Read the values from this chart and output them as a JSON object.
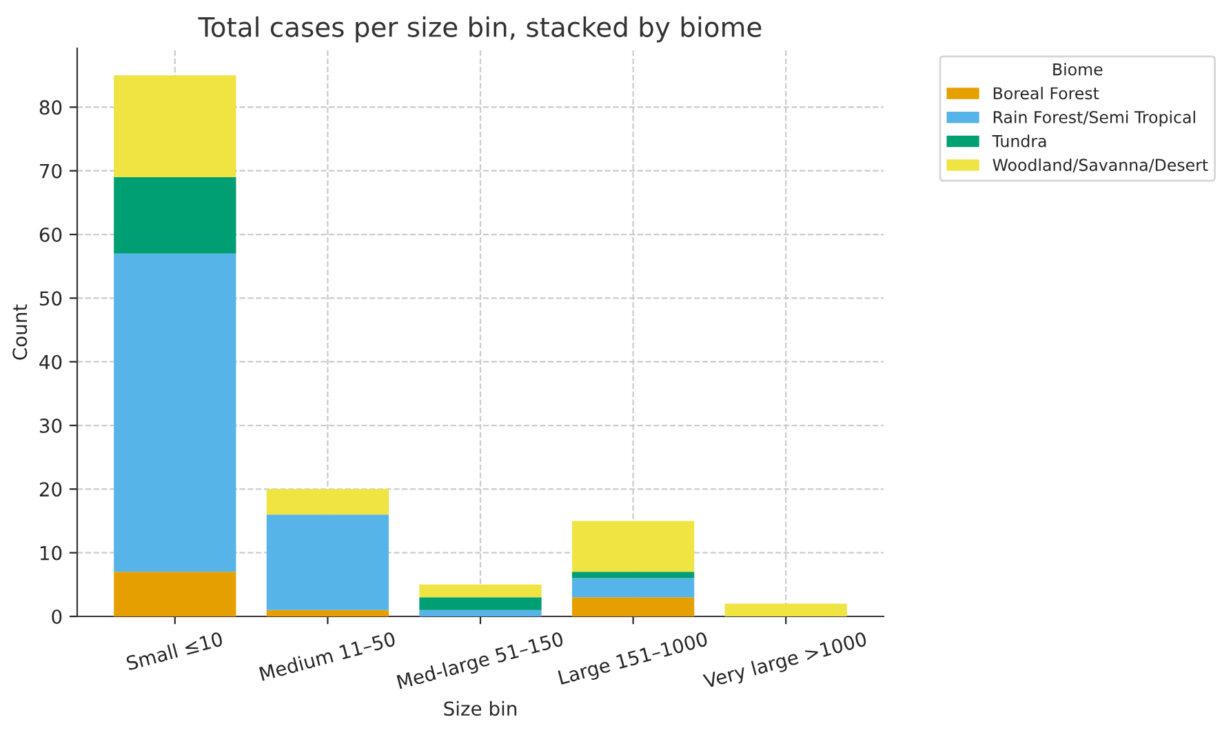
{
  "chart_data": {
    "type": "bar",
    "title": "Total cases per size bin, stacked by biome",
    "xlabel": "Size bin",
    "ylabel": "Count",
    "legend_title": "Biome",
    "categories": [
      "Small ≤10",
      "Medium 11–50",
      "Med-large 51–150",
      "Large 151–1000",
      "Very large >1000"
    ],
    "stacked": true,
    "series": [
      {
        "name": "Boreal Forest",
        "color": "#e69f00",
        "values": [
          7,
          1,
          0,
          3,
          0
        ]
      },
      {
        "name": "Rain Forest/Semi Tropical",
        "color": "#56b4e9",
        "values": [
          50,
          15,
          1,
          3,
          0
        ]
      },
      {
        "name": "Tundra",
        "color": "#009e73",
        "values": [
          12,
          0,
          2,
          1,
          0
        ]
      },
      {
        "name": "Woodland/Savanna/Desert",
        "color": "#f0e442",
        "values": [
          16,
          4,
          2,
          8,
          2
        ]
      }
    ],
    "ylim": [
      0,
      89.25
    ],
    "yticks": [
      0,
      10,
      20,
      30,
      40,
      50,
      60,
      70,
      80
    ],
    "grid": true,
    "legend": "top right"
  }
}
